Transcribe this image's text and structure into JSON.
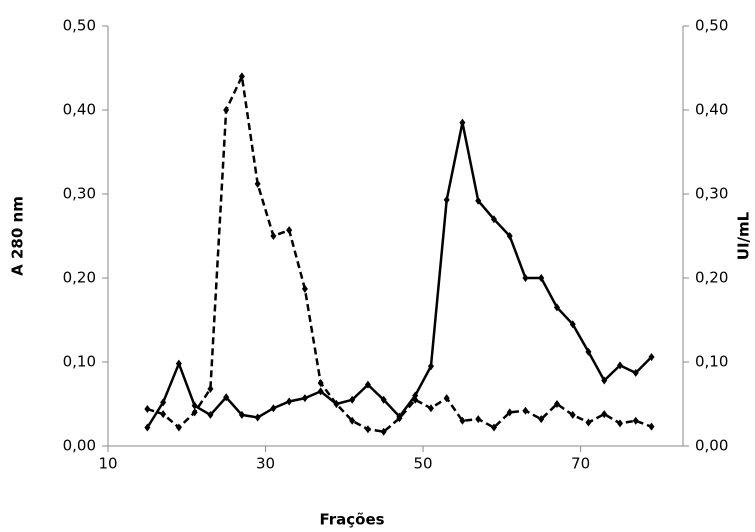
{
  "chart_data": {
    "type": "line",
    "xlabel": "Frações",
    "ylabel": "A 280 nm",
    "y2label": "UI/mL",
    "xlim": [
      10,
      83
    ],
    "xticks": [
      10,
      30,
      50,
      70
    ],
    "ylim": [
      0,
      0.5
    ],
    "yticks": [
      {
        "value": 0,
        "label": "0,00"
      },
      {
        "value": 0.1,
        "label": "0,10"
      },
      {
        "value": 0.2,
        "label": "0,20"
      },
      {
        "value": 0.3,
        "label": "0,30"
      },
      {
        "value": 0.4,
        "label": "0,40"
      },
      {
        "value": 0.5,
        "label": "0,50"
      }
    ],
    "y2lim": [
      0,
      0.5
    ],
    "y2ticks": [
      {
        "value": 0,
        "label": "0,00"
      },
      {
        "value": 0.1,
        "label": "0,10"
      },
      {
        "value": 0.2,
        "label": "0,20"
      },
      {
        "value": 0.3,
        "label": "0,30"
      },
      {
        "value": 0.4,
        "label": "0,40"
      },
      {
        "value": 0.5,
        "label": "0,50"
      }
    ],
    "x": [
      15,
      17,
      19,
      21,
      23,
      25,
      27,
      29,
      31,
      33,
      35,
      37,
      39,
      41,
      43,
      45,
      47,
      49,
      51,
      53,
      55,
      57,
      59,
      61,
      63,
      65,
      67,
      69,
      71,
      73,
      75,
      77,
      79
    ],
    "series": [
      {
        "color": "#000000",
        "dash": "dashed",
        "axis": "y",
        "values": [
          0.044,
          0.038,
          0.022,
          0.04,
          0.068,
          0.4,
          0.44,
          0.312,
          0.25,
          0.257,
          0.187,
          0.075,
          0.05,
          0.03,
          0.02,
          0.017,
          0.033,
          0.055,
          0.045,
          0.057,
          0.03,
          0.032,
          0.022,
          0.04,
          0.042,
          0.032,
          0.05,
          0.037,
          0.028,
          0.038,
          0.027,
          0.03,
          0.023
        ]
      },
      {
        "color": "#000000",
        "dash": "solid",
        "axis": "y2",
        "values": [
          0.022,
          0.052,
          0.098,
          0.048,
          0.037,
          0.058,
          0.037,
          0.034,
          0.045,
          0.053,
          0.057,
          0.065,
          0.05,
          0.055,
          0.073,
          0.055,
          0.035,
          0.06,
          0.095,
          0.293,
          0.385,
          0.292,
          0.27,
          0.25,
          0.2,
          0.2,
          0.165,
          0.145,
          0.112,
          0.078,
          0.096,
          0.087,
          0.106
        ]
      }
    ]
  }
}
